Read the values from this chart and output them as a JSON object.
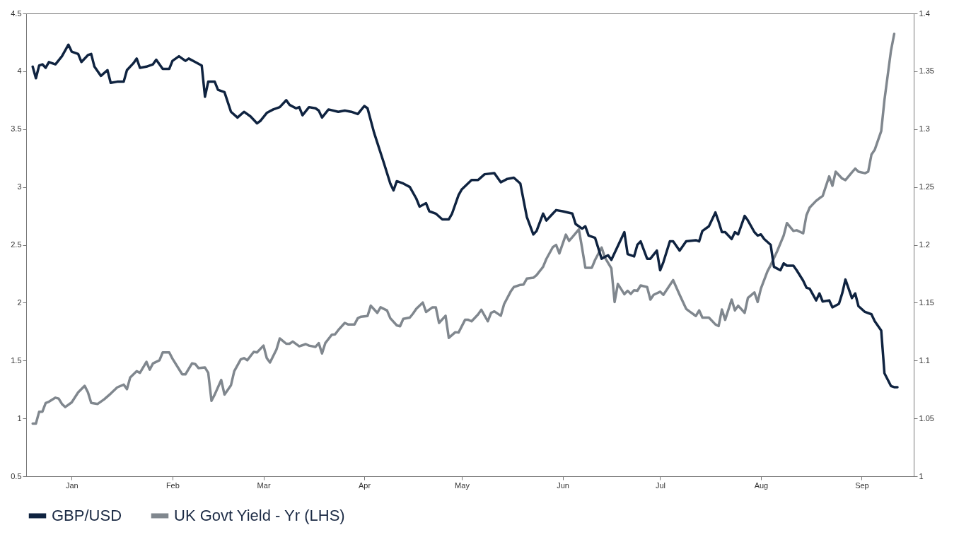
{
  "chart_data": {
    "type": "line",
    "xlim": [
      "--01-01",
      "--10-01"
    ],
    "xticks": [
      {
        "value": "--01-15",
        "label": "Jan"
      },
      {
        "value": "--02-15",
        "label": "Feb"
      },
      {
        "value": "--03-15",
        "label": "Mar"
      },
      {
        "value": "--04-15",
        "label": "Apr"
      },
      {
        "value": "--05-15",
        "label": "May"
      },
      {
        "value": "--06-15",
        "label": "Jun"
      },
      {
        "value": "--07-15",
        "label": "Jul"
      },
      {
        "value": "--08-15",
        "label": "Aug"
      },
      {
        "value": "--09-15",
        "label": "Sep"
      }
    ],
    "ylim": [
      0.5,
      4.5
    ],
    "yticks": [
      0.5,
      1,
      1.5,
      2,
      2.5,
      3,
      3.5,
      4,
      4.5
    ],
    "y2lim": [
      1,
      1.4
    ],
    "y2ticks": [
      1,
      1.05,
      1.1,
      1.15,
      1.2,
      1.25,
      1.3,
      1.35,
      1.4
    ],
    "legend": "bottom",
    "grid": false,
    "series": [
      {
        "name": "GBP/USD",
        "color": "#0f2340",
        "axis": "y2",
        "x": [
          "--01-03",
          "--01-04",
          "--01-05",
          "--01-06",
          "--01-07",
          "--01-08",
          "--01-10",
          "--01-12",
          "--01-14",
          "--01-15",
          "--01-17",
          "--01-18",
          "--01-20",
          "--01-21",
          "--01-22",
          "--01-24",
          "--01-26",
          "--01-27",
          "--01-29",
          "--01-31",
          "--02-01",
          "--02-03",
          "--02-04",
          "--02-05",
          "--02-07",
          "--02-09",
          "--02-10",
          "--02-12",
          "--02-14",
          "--02-15",
          "--02-17",
          "--02-19",
          "--02-20",
          "--02-22",
          "--02-24",
          "--02-25",
          "--02-26",
          "--02-28",
          "--03-01",
          "--03-03",
          "--03-05",
          "--03-07",
          "--03-09",
          "--03-11",
          "--03-13",
          "--03-14",
          "--03-16",
          "--03-18",
          "--03-20",
          "--03-22",
          "--03-23",
          "--03-25",
          "--03-26",
          "--03-27",
          "--03-29",
          "--03-31",
          "--04-01",
          "--04-02",
          "--04-04",
          "--04-07",
          "--04-09",
          "--04-11",
          "--04-13",
          "--04-15",
          "--04-16",
          "--04-18",
          "--04-21",
          "--04-23",
          "--04-24",
          "--04-25",
          "--04-27",
          "--04-29",
          "--05-01",
          "--05-02",
          "--05-04",
          "--05-05",
          "--05-07",
          "--05-09",
          "--05-11",
          "--05-12",
          "--05-14",
          "--05-15",
          "--05-18",
          "--05-20",
          "--05-22",
          "--05-25",
          "--05-27",
          "--05-29",
          "--05-31",
          "--06-02",
          "--06-04",
          "--06-06",
          "--06-07",
          "--06-09",
          "--06-10",
          "--06-12",
          "--06-13",
          "--06-15",
          "--06-18",
          "--06-19",
          "--06-21",
          "--06-22",
          "--06-23",
          "--06-25",
          "--06-27",
          "--06-29",
          "--06-30",
          "--07-04",
          "--07-05",
          "--07-07",
          "--07-08",
          "--07-09",
          "--07-11",
          "--07-12",
          "--07-14",
          "--07-15",
          "--07-16",
          "--07-18",
          "--07-19",
          "--07-21",
          "--07-23",
          "--07-26",
          "--07-27",
          "--07-28",
          "--07-30",
          "--08-01",
          "--08-02",
          "--08-03",
          "--08-04",
          "--08-06",
          "--08-07",
          "--08-08",
          "--08-10",
          "--08-11",
          "--08-13",
          "--08-14",
          "--08-15",
          "--08-16",
          "--08-18",
          "--08-19",
          "--08-21",
          "--08-22",
          "--08-23",
          "--08-25",
          "--08-26",
          "--08-28",
          "--08-29",
          "--08-30",
          "--09-01",
          "--09-02",
          "--09-03",
          "--09-05",
          "--09-06",
          "--09-08",
          "--09-09",
          "--09-10",
          "--09-12",
          "--09-13",
          "--09-14",
          "--09-16",
          "--09-18",
          "--09-19",
          "--09-21",
          "--09-22",
          "--09-24",
          "--09-25",
          "--09-26"
        ],
        "values": [
          1.354,
          1.344,
          1.355,
          1.356,
          1.353,
          1.358,
          1.356,
          1.363,
          1.373,
          1.367,
          1.365,
          1.358,
          1.364,
          1.365,
          1.354,
          1.346,
          1.351,
          1.34,
          1.341,
          1.341,
          1.351,
          1.357,
          1.361,
          1.353,
          1.354,
          1.356,
          1.36,
          1.352,
          1.352,
          1.359,
          1.363,
          1.359,
          1.361,
          1.358,
          1.355,
          1.328,
          1.341,
          1.341,
          1.334,
          1.332,
          1.315,
          1.31,
          1.315,
          1.311,
          1.305,
          1.307,
          1.314,
          1.317,
          1.319,
          1.325,
          1.321,
          1.318,
          1.319,
          1.312,
          1.319,
          1.318,
          1.316,
          1.31,
          1.317,
          1.315,
          1.316,
          1.315,
          1.313,
          1.32,
          1.318,
          1.297,
          1.271,
          1.253,
          1.247,
          1.255,
          1.253,
          1.25,
          1.24,
          1.233,
          1.236,
          1.229,
          1.227,
          1.222,
          1.222,
          1.227,
          1.243,
          1.248,
          1.256,
          1.256,
          1.261,
          1.262,
          1.254,
          1.257,
          1.258,
          1.253,
          1.224,
          1.209,
          1.212,
          1.227,
          1.221,
          1.227,
          1.23,
          1.229,
          1.227,
          1.218,
          1.214,
          1.216,
          1.208,
          1.206,
          1.188,
          1.191,
          1.187,
          1.211,
          1.192,
          1.19,
          1.2,
          1.203,
          1.188,
          1.188,
          1.195,
          1.178,
          1.185,
          1.203,
          1.203,
          1.195,
          1.203,
          1.204,
          1.203,
          1.212,
          1.216,
          1.228,
          1.22,
          1.211,
          1.211,
          1.205,
          1.211,
          1.209,
          1.225,
          1.221,
          1.211,
          1.208,
          1.209,
          1.205,
          1.2,
          1.181,
          1.178,
          1.184,
          1.182,
          1.182,
          1.178,
          1.169,
          1.163,
          1.162,
          1.152,
          1.158,
          1.151,
          1.152,
          1.146,
          1.149,
          1.158,
          1.17,
          1.154,
          1.158,
          1.147,
          1.142,
          1.14,
          1.134,
          1.126,
          1.089,
          1.078,
          1.077,
          1.077
        ]
      },
      {
        "name": "UK Govt Yield - Yr (LHS)",
        "color": "#80878e",
        "x": [
          "--01-03",
          "--01-04",
          "--01-05",
          "--01-06",
          "--01-07",
          "--01-08",
          "--01-10",
          "--01-11",
          "--01-12",
          "--01-13",
          "--01-15",
          "--01-17",
          "--01-19",
          "--01-20",
          "--01-21",
          "--01-23",
          "--01-25",
          "--01-27",
          "--01-29",
          "--01-31",
          "--02-01",
          "--02-02",
          "--02-04",
          "--02-05",
          "--02-07",
          "--02-08",
          "--02-09",
          "--02-11",
          "--02-12",
          "--02-14",
          "--02-15",
          "--02-18",
          "--02-19",
          "--02-21",
          "--02-22",
          "--02-23",
          "--02-25",
          "--02-26",
          "--02-27",
          "--02-28",
          "--03-02",
          "--03-03",
          "--03-05",
          "--03-06",
          "--03-08",
          "--03-09",
          "--03-10",
          "--03-12",
          "--03-13",
          "--03-15",
          "--03-16",
          "--03-17",
          "--03-19",
          "--03-20",
          "--03-22",
          "--03-23",
          "--03-24",
          "--03-26",
          "--03-28",
          "--03-29",
          "--03-31",
          "--04-01",
          "--04-02",
          "--04-03",
          "--04-05",
          "--04-06",
          "--04-07",
          "--04-09",
          "--04-10",
          "--04-12",
          "--04-13",
          "--04-14",
          "--04-16",
          "--04-17",
          "--04-19",
          "--04-20",
          "--04-22",
          "--04-23",
          "--04-25",
          "--04-26",
          "--04-27",
          "--04-29",
          "--04-30",
          "--05-01",
          "--05-03",
          "--05-04",
          "--05-06",
          "--05-07",
          "--05-08",
          "--05-10",
          "--05-11",
          "--05-13",
          "--05-14",
          "--05-16",
          "--05-17",
          "--05-18",
          "--05-20",
          "--05-21",
          "--05-23",
          "--05-24",
          "--05-25",
          "--05-27",
          "--05-28",
          "--05-30",
          "--05-31",
          "--06-02",
          "--06-03",
          "--06-04",
          "--06-06",
          "--06-07",
          "--06-09",
          "--06-10",
          "--06-12",
          "--06-13",
          "--06-14",
          "--06-16",
          "--06-17",
          "--06-18",
          "--06-20",
          "--06-21",
          "--06-22",
          "--06-24",
          "--06-25",
          "--06-27",
          "--06-28",
          "--06-30",
          "--07-01",
          "--07-02",
          "--07-04",
          "--07-05",
          "--07-06",
          "--07-07",
          "--07-08",
          "--07-09",
          "--07-11",
          "--07-12",
          "--07-13",
          "--07-15",
          "--07-16",
          "--07-19",
          "--07-21",
          "--07-23",
          "--07-24",
          "--07-26",
          "--07-27",
          "--07-28",
          "--07-30",
          "--08-01",
          "--08-02",
          "--08-03",
          "--08-04",
          "--08-06",
          "--08-07",
          "--08-08",
          "--08-10",
          "--08-11",
          "--08-13",
          "--08-14",
          "--08-15",
          "--08-17",
          "--08-18",
          "--08-20",
          "--08-22",
          "--08-23",
          "--08-25",
          "--08-26",
          "--08-28",
          "--08-29",
          "--08-30",
          "--09-01",
          "--09-02",
          "--09-03",
          "--09-05",
          "--09-06",
          "--09-07",
          "--09-09",
          "--09-10",
          "--09-12",
          "--09-13",
          "--09-14",
          "--09-16",
          "--09-17",
          "--09-18",
          "--09-19",
          "--09-21",
          "--09-22",
          "--09-24",
          "--09-25"
        ],
        "values": [
          0.955,
          0.955,
          1.058,
          1.058,
          1.133,
          1.144,
          1.179,
          1.171,
          1.125,
          1.098,
          1.138,
          1.225,
          1.281,
          1.225,
          1.133,
          1.125,
          1.165,
          1.214,
          1.268,
          1.292,
          1.252,
          1.354,
          1.408,
          1.394,
          1.489,
          1.421,
          1.475,
          1.502,
          1.57,
          1.57,
          1.516,
          1.381,
          1.381,
          1.475,
          1.47,
          1.435,
          1.44,
          1.394,
          1.152,
          1.206,
          1.332,
          1.206,
          1.287,
          1.408,
          1.51,
          1.521,
          1.502,
          1.575,
          1.57,
          1.629,
          1.521,
          1.483,
          1.596,
          1.691,
          1.645,
          1.645,
          1.664,
          1.623,
          1.642,
          1.629,
          1.618,
          1.65,
          1.561,
          1.65,
          1.723,
          1.726,
          1.763,
          1.825,
          1.812,
          1.812,
          1.866,
          1.879,
          1.885,
          1.974,
          1.912,
          1.96,
          1.933,
          1.866,
          1.804,
          1.796,
          1.86,
          1.871,
          1.906,
          1.947,
          2.001,
          1.92,
          1.96,
          1.96,
          1.825,
          1.887,
          1.696,
          1.745,
          1.742,
          1.852,
          1.852,
          1.839,
          1.898,
          1.939,
          1.839,
          1.912,
          1.925,
          1.887,
          1.987,
          2.095,
          2.135,
          2.154,
          2.157,
          2.208,
          2.216,
          2.238,
          2.31,
          2.378,
          2.48,
          2.499,
          2.426,
          2.588,
          2.534,
          2.566,
          2.634,
          2.472,
          2.302,
          2.302,
          2.37,
          2.477,
          2.391,
          2.297,
          2.006,
          2.162,
          2.073,
          2.103,
          2.076,
          2.108,
          2.103,
          2.149,
          2.135,
          2.027,
          2.068,
          2.095,
          2.068,
          2.195,
          2.068,
          1.947,
          1.925,
          1.885,
          1.933,
          1.871,
          1.871,
          1.812,
          1.798,
          1.941,
          1.852,
          2.027,
          1.933,
          1.974,
          1.912,
          2.041,
          2.089,
          2.006,
          2.122,
          2.27,
          2.324,
          2.445,
          2.58,
          2.688,
          2.62,
          2.626,
          2.599,
          2.755,
          2.822,
          2.881,
          2.903,
          2.922,
          3.092,
          3.011,
          3.132,
          3.073,
          3.059,
          3.127,
          3.159,
          3.132,
          3.119,
          3.132,
          3.28,
          3.321,
          3.482,
          3.752,
          4.177,
          4.323
        ]
      }
    ]
  }
}
